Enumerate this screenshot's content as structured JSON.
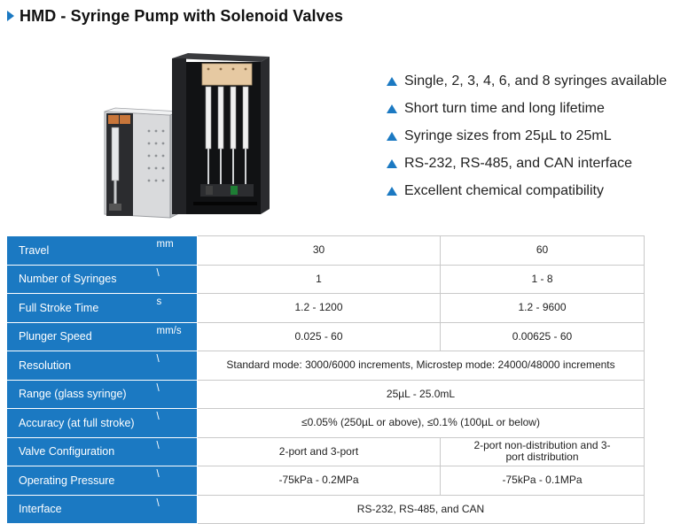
{
  "header": {
    "title": "HMD - Syringe Pump with Solenoid Valves"
  },
  "features": [
    "Single, 2, 3, 4, 6, and 8 syringes available",
    "Short turn time and long lifetime",
    "Syringe sizes from 25µL to 25mL",
    "RS-232, RS-485, and CAN interface",
    "Excellent chemical compatibility"
  ],
  "colors": {
    "accent": "#1b79c2"
  },
  "spec_table": {
    "rows": [
      {
        "label": "Travel",
        "unit": "mm",
        "values": [
          "30",
          "60"
        ]
      },
      {
        "label": "Number of Syringes",
        "unit": "\\",
        "values": [
          "1",
          "1 - 8"
        ]
      },
      {
        "label": "Full Stroke Time",
        "unit": "s",
        "values": [
          "1.2 - 1200",
          "1.2 - 9600"
        ]
      },
      {
        "label": "Plunger Speed",
        "unit": "mm/s",
        "values": [
          "0.025 - 60",
          "0.00625 - 60"
        ]
      },
      {
        "label": "Resolution",
        "unit": "\\",
        "values": [
          "Standard mode: 3000/6000 increments, Microstep mode: 24000/48000 increments"
        ]
      },
      {
        "label": "Range (glass syringe)",
        "unit": "\\",
        "values": [
          "25µL - 25.0mL"
        ]
      },
      {
        "label": "Accuracy (at full stroke)",
        "unit": "\\",
        "values": [
          "≤0.05% (250µL or above), ≤0.1% (100µL or below)"
        ]
      },
      {
        "label": "Valve Configuration",
        "unit": "\\",
        "values": [
          "2-port and 3-port",
          "2-port non-distribution and 3-port distribution"
        ]
      },
      {
        "label": "Operating Pressure",
        "unit": "\\",
        "values": [
          "-75kPa - 0.2MPa",
          "-75kPa - 0.1MPa"
        ]
      },
      {
        "label": "Interface",
        "unit": "\\",
        "values": [
          "RS-232, RS-485, and CAN"
        ]
      }
    ]
  }
}
